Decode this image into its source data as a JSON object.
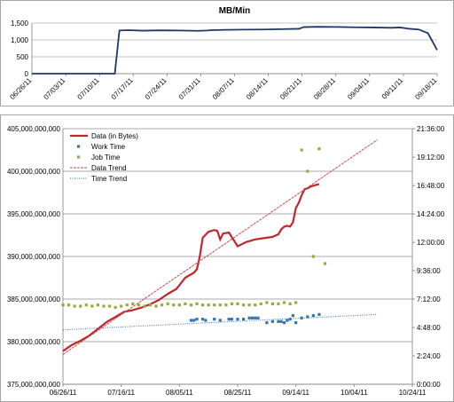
{
  "chart_data": [
    {
      "type": "line",
      "title": "MB/Min",
      "ylim": [
        0,
        1500
      ],
      "yticks": [
        "0",
        "500",
        "1,000",
        "1,500"
      ],
      "yticks_values": [
        0,
        500,
        1000,
        1500
      ],
      "categories": [
        "06/26/11",
        "07/03/11",
        "07/10/11",
        "07/17/11",
        "07/24/11",
        "07/31/11",
        "08/07/11",
        "08/14/11",
        "08/21/11",
        "08/28/11",
        "09/04/11",
        "09/11/11",
        "09/18/11"
      ],
      "grid": true,
      "series": [
        {
          "color": "#1f3864",
          "x": [
            0,
            18,
            19,
            21,
            24,
            28,
            32,
            36,
            38,
            39,
            42,
            46,
            50,
            54,
            58,
            59,
            62,
            66,
            70,
            74,
            78,
            80,
            82,
            84,
            86,
            88
          ],
          "values": [
            0,
            0,
            1280,
            1290,
            1275,
            1285,
            1280,
            1270,
            1280,
            1290,
            1300,
            1305,
            1310,
            1320,
            1330,
            1380,
            1390,
            1385,
            1375,
            1370,
            1360,
            1370,
            1330,
            1310,
            1200,
            700
          ]
        }
      ]
    },
    {
      "type": "line",
      "xlabel": "",
      "ylabel": "",
      "x_ticks": [
        "06/26/11",
        "07/16/11",
        "08/05/11",
        "08/25/11",
        "09/14/11",
        "10/04/11",
        "10/24/11"
      ],
      "x_tick_values": [
        0,
        20,
        40,
        60,
        80,
        100,
        120
      ],
      "xlim": [
        0,
        120
      ],
      "ylim": [
        375000000000,
        405000000000
      ],
      "yticks": [
        "375,000,000,000",
        "380,000,000,000",
        "385,000,000,000",
        "390,000,000,000",
        "395,000,000,000",
        "400,000,000,000",
        "405,000,000,000"
      ],
      "yticks_values": [
        375000000000,
        380000000000,
        385000000000,
        390000000000,
        395000000000,
        400000000000,
        405000000000
      ],
      "y2lim": [
        0,
        21.6
      ],
      "y2ticks": [
        "0:00:00",
        "2:24:00",
        "4:48:00",
        "7:12:00",
        "9:36:00",
        "12:00:00",
        "14:24:00",
        "16:48:00",
        "19:12:00",
        "21:36:00"
      ],
      "y2ticks_values": [
        0,
        2.4,
        4.8,
        7.2,
        9.6,
        12.0,
        14.4,
        16.8,
        19.2,
        21.6
      ],
      "legend": "top-left",
      "grid": true,
      "series": [
        {
          "name": "Data (in Bytes)",
          "axis": "left",
          "style": "line",
          "color": "#c0272d",
          "x": [
            0,
            3,
            6,
            9,
            12,
            15,
            18,
            21,
            24,
            27,
            30,
            33,
            36,
            39,
            42,
            45,
            46,
            47,
            48,
            50,
            52,
            53,
            54,
            55,
            57,
            60,
            63,
            66,
            70,
            72,
            74,
            75,
            76,
            77,
            78,
            79,
            80,
            81,
            82,
            83,
            84,
            85,
            87,
            88
          ],
          "values": [
            378900000000,
            379600000000,
            380100000000,
            380700000000,
            381500000000,
            382300000000,
            382900000000,
            383500000000,
            383700000000,
            384000000000,
            384400000000,
            384900000000,
            385600000000,
            386200000000,
            387500000000,
            388100000000,
            388500000000,
            390000000000,
            392200000000,
            392900000000,
            393100000000,
            393000000000,
            392000000000,
            392700000000,
            392800000000,
            391200000000,
            391700000000,
            392000000000,
            392200000000,
            392300000000,
            392600000000,
            393200000000,
            393500000000,
            393600000000,
            393500000000,
            394000000000,
            395700000000,
            396300000000,
            397200000000,
            397900000000,
            398000000000,
            398200000000,
            398400000000,
            398500000000
          ]
        },
        {
          "name": "Work Time",
          "axis": "right",
          "style": "markers",
          "color": "#2e75b6",
          "x": [
            44,
            45,
            46,
            48,
            49,
            52,
            54,
            57,
            58,
            60,
            62,
            64,
            65,
            66,
            67,
            70,
            72,
            74,
            75,
            76,
            77,
            78,
            79,
            80,
            82,
            84,
            86,
            88
          ],
          "values": [
            5.4,
            5.4,
            5.5,
            5.5,
            5.4,
            5.5,
            5.4,
            5.5,
            5.5,
            5.5,
            5.5,
            5.6,
            5.6,
            5.6,
            5.6,
            5.2,
            5.3,
            5.3,
            5.3,
            5.2,
            5.4,
            5.5,
            5.8,
            5.2,
            5.6,
            5.7,
            5.8,
            5.9
          ]
        },
        {
          "name": "Job Time",
          "axis": "right",
          "style": "markers",
          "color": "#8bb03a",
          "x": [
            0,
            2,
            4,
            6,
            8,
            10,
            12,
            14,
            16,
            18,
            20,
            22,
            24,
            26,
            28,
            30,
            32,
            34,
            36,
            38,
            40,
            42,
            44,
            46,
            48,
            50,
            52,
            54,
            56,
            58,
            60,
            62,
            64,
            66,
            68,
            70,
            72,
            74,
            76,
            78,
            80,
            82,
            84,
            86,
            88,
            90
          ],
          "values": [
            6.7,
            6.7,
            6.6,
            6.6,
            6.7,
            6.6,
            6.7,
            6.6,
            6.6,
            6.5,
            6.6,
            6.7,
            6.8,
            6.7,
            6.6,
            6.7,
            6.6,
            6.7,
            6.8,
            6.7,
            6.7,
            6.8,
            6.7,
            6.8,
            6.7,
            6.7,
            6.7,
            6.7,
            6.7,
            6.8,
            6.8,
            6.7,
            6.7,
            6.7,
            6.8,
            6.9,
            6.8,
            6.8,
            6.9,
            6.8,
            6.9,
            19.8,
            18.0,
            10.8,
            19.9,
            10.2
          ]
        },
        {
          "name": "Data Trend",
          "axis": "left",
          "style": "dashed",
          "color": "#c0504d",
          "x": [
            0,
            108
          ],
          "values": [
            378500000000,
            403700000000
          ]
        },
        {
          "name": "Time Trend",
          "axis": "right",
          "style": "dotted",
          "color": "#4f81bd",
          "x": [
            0,
            108
          ],
          "values": [
            4.6,
            5.9
          ]
        }
      ]
    }
  ]
}
